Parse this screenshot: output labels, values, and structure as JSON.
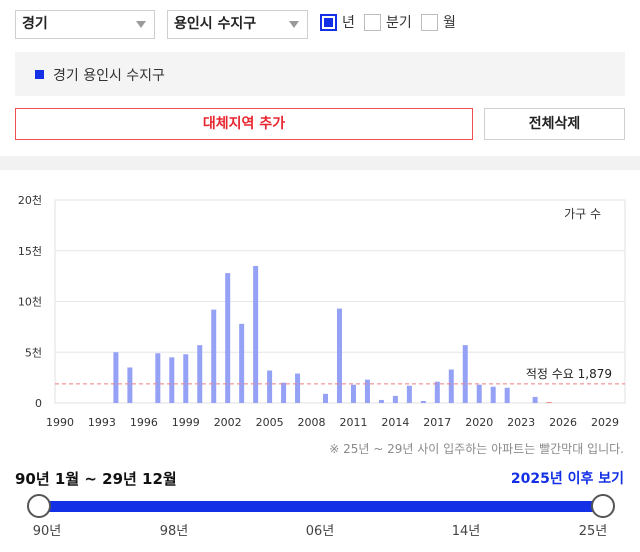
{
  "filters": {
    "province": "경기",
    "district": "용인시 수지구",
    "periods": [
      {
        "label": "년",
        "checked": true
      },
      {
        "label": "분기",
        "checked": false
      },
      {
        "label": "월",
        "checked": false
      }
    ]
  },
  "selected_region": "경기 용인시 수지구",
  "buttons": {
    "add_region": "대체지역 추가",
    "delete_all": "전체삭제"
  },
  "chart_data": {
    "type": "bar",
    "unit_label": "가구 수",
    "y_ticks": [
      "0",
      "5천",
      "10천",
      "15천",
      "20천"
    ],
    "ylim": [
      0,
      20000
    ],
    "x_ticks": [
      "1990",
      "1993",
      "1996",
      "1999",
      "2002",
      "2005",
      "2008",
      "2011",
      "2014",
      "2017",
      "2020",
      "2023",
      "2026",
      "2029"
    ],
    "x": [
      1990,
      1991,
      1992,
      1993,
      1994,
      1995,
      1996,
      1997,
      1998,
      1999,
      2000,
      2001,
      2002,
      2003,
      2004,
      2005,
      2006,
      2007,
      2008,
      2009,
      2010,
      2011,
      2012,
      2013,
      2014,
      2015,
      2016,
      2017,
      2018,
      2019,
      2020,
      2021,
      2022,
      2023,
      2024,
      2025,
      2026,
      2027,
      2028,
      2029
    ],
    "values": [
      0,
      0,
      0,
      0,
      5000,
      3500,
      0,
      4900,
      4500,
      4800,
      5700,
      9200,
      12800,
      7800,
      13500,
      3200,
      2000,
      2900,
      0,
      900,
      9300,
      1800,
      2300,
      300,
      700,
      1700,
      200,
      2100,
      3300,
      5700,
      1800,
      1600,
      1500,
      0,
      600,
      100,
      0,
      0,
      0,
      0
    ],
    "bar_color": "#94a1f5",
    "future_bar_color": "#f58a8a",
    "reference_line": {
      "label": "적정 수요 1,879",
      "value": 1879,
      "color": "#f07f7f"
    }
  },
  "note": "※ 25년 ~ 29년 사이 입주하는 아파트는 빨간막대 입니다.",
  "range": {
    "label": "90년 1월 ~ 29년 12월",
    "after_link": "2025년 이후 보기",
    "tick_labels": [
      "90년",
      "98년",
      "06년",
      "14년",
      "25년"
    ],
    "start": 0,
    "end": 1
  }
}
